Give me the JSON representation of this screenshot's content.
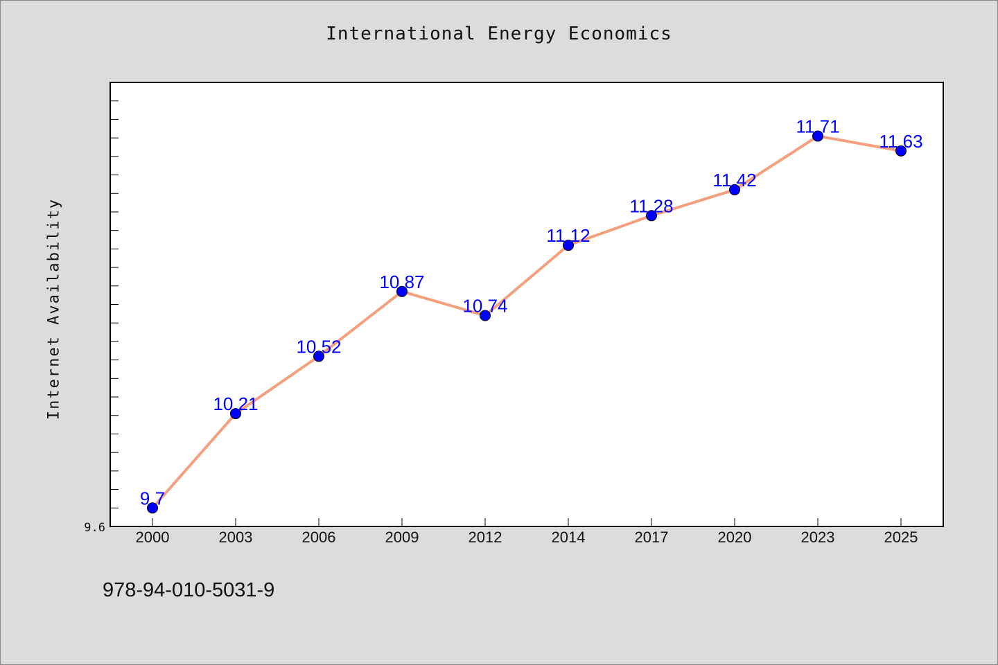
{
  "chart_data": {
    "type": "line",
    "title": "International Energy Economics",
    "xlabel": "",
    "ylabel": "Internet Availability",
    "categories": [
      "2000",
      "2003",
      "2006",
      "2009",
      "2012",
      "2014",
      "2017",
      "2020",
      "2023",
      "2025"
    ],
    "series": [
      {
        "values": [
          9.7,
          10.21,
          10.52,
          10.87,
          10.74,
          11.12,
          11.28,
          11.42,
          11.71,
          11.63
        ]
      }
    ],
    "data_labels": [
      "9.7",
      "10.21",
      "10.52",
      "10.87",
      "10.74",
      "11.12",
      "11.28",
      "11.42",
      "11.71",
      "11.63"
    ],
    "ylim": [
      9.6,
      12.0
    ],
    "y_tick_label": "9.6",
    "grid": false,
    "legend": "none",
    "colors": {
      "line": "#f4a07e",
      "marker": "#0000ff",
      "data_label": "#0000ff",
      "plot_background": "#ffffff",
      "figure_background": "#dcdcdc"
    }
  },
  "footer_text": "978-94-010-5031-9"
}
